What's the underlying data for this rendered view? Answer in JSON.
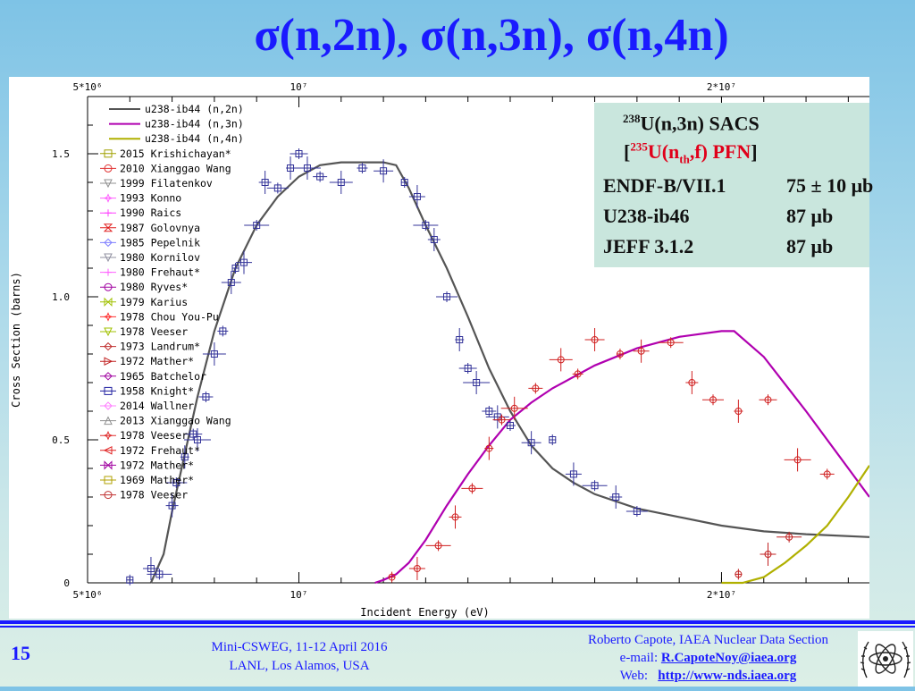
{
  "slide": {
    "title": "σ(n,2n), σ(n,3n), σ(n,4n)",
    "number": "15"
  },
  "info_box": {
    "line1_sup": "238",
    "line1_text": "U(n,3n) SACS",
    "line2_open": "[",
    "line2_sup": "235",
    "line2_a": "U(n",
    "line2_sub": "th",
    "line2_b": ",f) PFN",
    "line2_close": "]",
    "rows": [
      {
        "lib": "ENDF-B/VII.1",
        "val": "75 ± 10 μb"
      },
      {
        "lib": "U238-ib46",
        "val": "87 μb"
      },
      {
        "lib": "JEFF 3.1.2",
        "val": "87 μb"
      }
    ]
  },
  "footer": {
    "meeting_line1": "Mini-CSWEG, 11-12 April 2016",
    "meeting_line2": "LANL, Los Alamos, USA",
    "author_line": "Roberto Capote, IAEA Nuclear Data Section",
    "email_label": "e-mail:",
    "email": "R.CapoteNoy@iaea.org",
    "web_label": "Web:",
    "web": "http://www-nds.iaea.org",
    "logo_icon": "iaea-logo-icon"
  },
  "chart_data": {
    "type": "scatter",
    "xlabel": "Incident Energy (eV)",
    "ylabel": "Cross Section (barns)",
    "xlim": [
      5000000,
      23500000
    ],
    "ylim": [
      0,
      1.7
    ],
    "x_ticks": [
      {
        "value": 5000000,
        "label": "5*10⁶"
      },
      {
        "value": 10000000,
        "label": "10⁷"
      },
      {
        "value": 20000000,
        "label": "2*10⁷"
      }
    ],
    "y_ticks": [
      {
        "value": 0,
        "label": "0"
      },
      {
        "value": 0.5,
        "label": "0.5"
      },
      {
        "value": 1.0,
        "label": "1.0"
      },
      {
        "value": 1.5,
        "label": "1.5"
      }
    ],
    "legend_placement": "top-left",
    "curves": [
      {
        "name": "u238-ib44 (n,2n)",
        "color": "#555555",
        "x": [
          6500000.0,
          6800000.0,
          7000000.0,
          7300000.0,
          7600000.0,
          8000000.0,
          8500000.0,
          9000000.0,
          9500000.0,
          10000000.0,
          10500000.0,
          11000000.0,
          11500000.0,
          12000000.0,
          12300000.0,
          12600000.0,
          13000000.0,
          13500000.0,
          14000000.0,
          14500000.0,
          15000000.0,
          15500000.0,
          16000000.0,
          16500000.0,
          17000000.0,
          18000000.0,
          19000000.0,
          20000000.0,
          21000000.0,
          22000000.0,
          23500000.0
        ],
        "y": [
          0.0,
          0.1,
          0.25,
          0.45,
          0.65,
          0.88,
          1.1,
          1.25,
          1.35,
          1.42,
          1.46,
          1.47,
          1.47,
          1.47,
          1.46,
          1.38,
          1.25,
          1.1,
          0.93,
          0.75,
          0.6,
          0.48,
          0.4,
          0.35,
          0.31,
          0.26,
          0.23,
          0.2,
          0.18,
          0.17,
          0.16
        ]
      },
      {
        "name": "u238-ib44 (n,3n)",
        "color": "#b000b0",
        "x": [
          11800000.0,
          12000000.0,
          12300000.0,
          12600000.0,
          13000000.0,
          13500000.0,
          14000000.0,
          14500000.0,
          15000000.0,
          15500000.0,
          16000000.0,
          17000000.0,
          18000000.0,
          19000000.0,
          20000000.0,
          20300000.0,
          21000000.0,
          22000000.0,
          23000000.0,
          23500000.0
        ],
        "y": [
          0.0,
          0.01,
          0.03,
          0.07,
          0.15,
          0.27,
          0.38,
          0.48,
          0.57,
          0.63,
          0.68,
          0.76,
          0.82,
          0.86,
          0.88,
          0.88,
          0.79,
          0.6,
          0.4,
          0.3
        ]
      },
      {
        "name": "u238-ib44 (n,4n)",
        "color": "#b0b000",
        "x": [
          20000000.0,
          20500000.0,
          21000000.0,
          21500000.0,
          22000000.0,
          22500000.0,
          23000000.0,
          23500000.0
        ],
        "y": [
          0.0,
          0.0,
          0.02,
          0.07,
          0.13,
          0.2,
          0.3,
          0.41
        ]
      }
    ],
    "legend_datasets": [
      {
        "name": "2015 Krishichayan*",
        "color": "#a0a000",
        "shape": "square"
      },
      {
        "name": "2010 Xianggao Wang",
        "color": "#e03030",
        "shape": "circle"
      },
      {
        "name": "1999 Filatenkov",
        "color": "#909090",
        "shape": "tri-down"
      },
      {
        "name": "1993 Konno",
        "color": "#ff60ff",
        "shape": "star"
      },
      {
        "name": "1990 Raics",
        "color": "#ff40ff",
        "shape": "cross"
      },
      {
        "name": "1987 Golovnya",
        "color": "#e02020",
        "shape": "hourglass"
      },
      {
        "name": "1985 Pepelnik",
        "color": "#8080ff",
        "shape": "diamond"
      },
      {
        "name": "1980 Kornilov",
        "color": "#9090a0",
        "shape": "tri-down"
      },
      {
        "name": "1980 Frehaut*",
        "color": "#ff60ff",
        "shape": "cross"
      },
      {
        "name": "1980 Ryves*",
        "color": "#a000a0",
        "shape": "circle"
      },
      {
        "name": "1979 Karius",
        "color": "#a0c000",
        "shape": "bowtie"
      },
      {
        "name": "1978 Chou You-Pu",
        "color": "#ff3030",
        "shape": "star"
      },
      {
        "name": "1978 Veeser",
        "color": "#a0c000",
        "shape": "tri-down"
      },
      {
        "name": "1973 Landrum*",
        "color": "#c03030",
        "shape": "diamond"
      },
      {
        "name": "1972 Mather*",
        "color": "#c02020",
        "shape": "tri-right"
      },
      {
        "name": "1965 Batchelor",
        "color": "#a000a0",
        "shape": "diamond"
      },
      {
        "name": "1958 Knight*",
        "color": "#2020a0",
        "shape": "square"
      },
      {
        "name": "2014 Wallner",
        "color": "#ff80ff",
        "shape": "diamond"
      },
      {
        "name": "2013 Xianggao Wang",
        "color": "#909090",
        "shape": "tri-up"
      },
      {
        "name": "1978 Veeser",
        "color": "#e03030",
        "shape": "star"
      },
      {
        "name": "1972 Frehaut*",
        "color": "#e02020",
        "shape": "tri-left"
      },
      {
        "name": "1972 Mather*",
        "color": "#a000a0",
        "shape": "bowtie"
      },
      {
        "name": "1969 Mather*",
        "color": "#b0a000",
        "shape": "square"
      },
      {
        "name": "1978 Veeser",
        "color": "#c03030",
        "shape": "circle"
      }
    ],
    "points_n2n": {
      "color": "#333399",
      "x": [
        6000000.0,
        6500000.0,
        6700000.0,
        7000000.0,
        7100000.0,
        7300000.0,
        7500000.0,
        7600000.0,
        7800000.0,
        8000000.0,
        8200000.0,
        8400000.0,
        8500000.0,
        8700000.0,
        9000000.0,
        9200000.0,
        9500000.0,
        9800000.0,
        10000000.0,
        10200000.0,
        10500000.0,
        11000000.0,
        11500000.0,
        12000000.0,
        12500000.0,
        12800000.0,
        13000000.0,
        13200000.0,
        13500000.0,
        13800000.0,
        14000000.0,
        14200000.0,
        14500000.0,
        14700000.0,
        15000000.0,
        15500000.0,
        16000000.0,
        16500000.0,
        17000000.0,
        17500000.0,
        18000000.0
      ],
      "y": [
        0.01,
        0.05,
        0.03,
        0.27,
        0.35,
        0.44,
        0.52,
        0.5,
        0.65,
        0.8,
        0.88,
        1.05,
        1.1,
        1.12,
        1.25,
        1.4,
        1.38,
        1.45,
        1.5,
        1.45,
        1.42,
        1.4,
        1.45,
        1.44,
        1.4,
        1.35,
        1.25,
        1.2,
        1.0,
        0.85,
        0.75,
        0.7,
        0.6,
        0.58,
        0.55,
        0.49,
        0.5,
        0.38,
        0.34,
        0.3,
        0.25
      ]
    },
    "points_n3n": {
      "color": "#d02020",
      "x": [
        12200000.0,
        12800000.0,
        13300000.0,
        13700000.0,
        14100000.0,
        14500000.0,
        14800000.0,
        15100000.0,
        15600000.0,
        16200000.0,
        16600000.0,
        17000000.0,
        17600000.0,
        18100000.0,
        18800000.0,
        19300000.0,
        19800000.0,
        20400000.0,
        21100000.0,
        21800000.0,
        22500000.0
      ],
      "y": [
        0.02,
        0.05,
        0.13,
        0.23,
        0.33,
        0.47,
        0.57,
        0.61,
        0.68,
        0.78,
        0.73,
        0.85,
        0.8,
        0.81,
        0.84,
        0.7,
        0.64,
        0.6,
        0.64,
        0.43,
        0.38
      ]
    },
    "points_n4n": {
      "color": "#c02020",
      "x": [
        20400000.0,
        21100000.0,
        21600000.0
      ],
      "y": [
        0.03,
        0.1,
        0.16
      ]
    }
  }
}
